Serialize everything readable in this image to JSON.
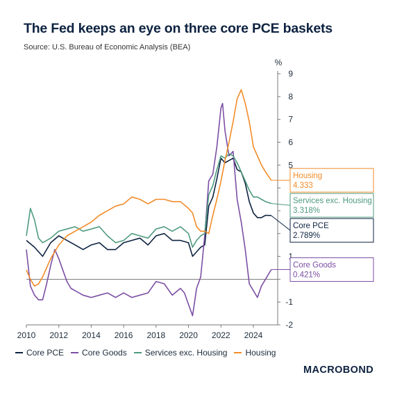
{
  "header": {
    "title": "The Fed keeps an eye on three core PCE baskets",
    "subtitle": "Source: U.S. Bureau of Economic Analysis (BEA)"
  },
  "brand": {
    "text": "MACROBOND"
  },
  "chart_data": {
    "type": "line",
    "title": "The Fed keeps an eye on three core PCE baskets",
    "subtitle": "Source: U.S. Bureau of Economic Analysis (BEA)",
    "unit_label": "%",
    "xlim": [
      2010,
      2025.5
    ],
    "ylim": [
      -2,
      9
    ],
    "x_ticks": [
      2010,
      2012,
      2014,
      2016,
      2018,
      2020,
      2022,
      2024
    ],
    "x_tick_labels": [
      "2010",
      "2012",
      "2014",
      "2016",
      "2018",
      "2020",
      "2022",
      "2024"
    ],
    "y_ticks": [
      -2,
      -1,
      0,
      1,
      2,
      3,
      4,
      5,
      6,
      7,
      8,
      9
    ],
    "y_tick_labels": [
      "-2",
      "-1",
      "",
      "1",
      "",
      "",
      "",
      "5",
      "6",
      "7",
      "8",
      "9"
    ],
    "zero_line": 0,
    "grid": false,
    "legend_position": "bottom",
    "series": [
      {
        "name": "Core PCE",
        "color": "#0d2240",
        "end_label": "Core PCE",
        "end_value_label": "2.789%",
        "x": [
          2010,
          2010.5,
          2011,
          2011.5,
          2012,
          2012.5,
          2013,
          2013.5,
          2014,
          2014.5,
          2015,
          2015.5,
          2016,
          2016.5,
          2017,
          2017.5,
          2018,
          2018.5,
          2019,
          2019.5,
          2020,
          2020.25,
          2020.5,
          2020.75,
          2021,
          2021.25,
          2021.5,
          2021.75,
          2022,
          2022.25,
          2022.5,
          2022.75,
          2023,
          2023.25,
          2023.5,
          2023.75,
          2024,
          2024.25,
          2024.5,
          2024.75,
          2025.1
        ],
        "y": [
          1.7,
          1.4,
          1.0,
          1.6,
          1.9,
          1.7,
          1.5,
          1.3,
          1.5,
          1.6,
          1.3,
          1.3,
          1.6,
          1.7,
          1.8,
          1.5,
          1.9,
          2.0,
          1.7,
          1.7,
          1.6,
          1.0,
          1.2,
          1.4,
          1.5,
          3.2,
          3.6,
          4.4,
          5.3,
          5.1,
          5.2,
          5.3,
          4.8,
          4.7,
          4.2,
          3.4,
          2.9,
          2.7,
          2.7,
          2.8,
          2.789
        ]
      },
      {
        "name": "Core Goods",
        "color": "#7b4ea3",
        "end_label": "Core Goods",
        "end_value_label": "0.421%",
        "x": [
          2010,
          2010.25,
          2010.5,
          2010.75,
          2011,
          2011.25,
          2011.5,
          2011.75,
          2012,
          2012.25,
          2012.5,
          2012.75,
          2013,
          2013.5,
          2014,
          2014.5,
          2015,
          2015.5,
          2016,
          2016.5,
          2017,
          2017.5,
          2018,
          2018.5,
          2019,
          2019.5,
          2019.75,
          2020,
          2020.25,
          2020.5,
          2020.75,
          2021,
          2021.25,
          2021.5,
          2021.75,
          2022,
          2022.1,
          2022.25,
          2022.5,
          2022.75,
          2023,
          2023.25,
          2023.5,
          2023.75,
          2024,
          2024.25,
          2024.5,
          2024.75,
          2025.1
        ],
        "y": [
          1.3,
          -0.3,
          -0.7,
          -0.9,
          -0.9,
          -0.2,
          0.6,
          1.3,
          0.9,
          0.4,
          -0.1,
          -0.4,
          -0.5,
          -0.7,
          -0.8,
          -0.7,
          -0.6,
          -0.8,
          -0.6,
          -0.8,
          -0.7,
          -0.6,
          -0.1,
          -0.2,
          -0.7,
          -0.4,
          -0.6,
          -1.1,
          -1.6,
          -0.4,
          0.1,
          1.9,
          4.3,
          4.6,
          5.8,
          7.5,
          7.7,
          6.5,
          5.4,
          5.6,
          3.5,
          2.5,
          1.3,
          -0.2,
          -0.5,
          -0.8,
          -0.3,
          0.0,
          0.421
        ]
      },
      {
        "name": "Services exc. Housing",
        "color": "#4e9a7e",
        "end_label": "Services exc. Housing",
        "end_value_label": "3.318%",
        "x": [
          2010,
          2010.25,
          2010.5,
          2010.75,
          2011,
          2011.5,
          2012,
          2012.5,
          2013,
          2013.5,
          2014,
          2014.5,
          2015,
          2015.5,
          2016,
          2016.5,
          2017,
          2017.5,
          2018,
          2018.5,
          2019,
          2019.5,
          2020,
          2020.25,
          2020.5,
          2020.75,
          2021,
          2021.25,
          2021.5,
          2021.75,
          2022,
          2022.25,
          2022.5,
          2022.75,
          2023,
          2023.25,
          2023.5,
          2023.75,
          2024,
          2024.25,
          2024.5,
          2024.75,
          2025.1
        ],
        "y": [
          1.9,
          3.1,
          2.6,
          1.8,
          1.6,
          1.8,
          2.1,
          2.2,
          2.3,
          2.1,
          2.2,
          2.3,
          1.9,
          1.6,
          1.7,
          2.0,
          1.9,
          1.8,
          2.2,
          2.3,
          2.1,
          2.3,
          2.0,
          1.4,
          1.7,
          1.9,
          2.0,
          3.7,
          4.1,
          4.8,
          5.4,
          5.3,
          5.5,
          5.4,
          5.1,
          4.7,
          4.3,
          3.9,
          3.6,
          3.6,
          3.5,
          3.4,
          3.318
        ]
      },
      {
        "name": "Housing",
        "color": "#f28c28",
        "end_label": "Housing",
        "end_value_label": "4.333",
        "x": [
          2010,
          2010.25,
          2010.5,
          2010.75,
          2011,
          2011.5,
          2012,
          2012.5,
          2013,
          2013.5,
          2014,
          2014.5,
          2015,
          2015.5,
          2016,
          2016.5,
          2017,
          2017.5,
          2018,
          2018.5,
          2019,
          2019.5,
          2020,
          2020.25,
          2020.5,
          2020.75,
          2021,
          2021.25,
          2021.5,
          2021.75,
          2022,
          2022.25,
          2022.5,
          2022.75,
          2023,
          2023.25,
          2023.5,
          2023.75,
          2024,
          2024.25,
          2024.5,
          2024.75,
          2025.1
        ],
        "y": [
          0.4,
          0.0,
          -0.3,
          -0.2,
          0.1,
          0.9,
          1.5,
          1.9,
          2.1,
          2.3,
          2.5,
          2.8,
          3.0,
          3.2,
          3.3,
          3.6,
          3.5,
          3.3,
          3.5,
          3.5,
          3.4,
          3.4,
          3.1,
          2.9,
          2.3,
          2.1,
          2.1,
          2.0,
          2.8,
          3.5,
          4.3,
          5.2,
          6.0,
          6.9,
          7.9,
          8.3,
          7.7,
          6.9,
          5.8,
          5.4,
          5.0,
          4.7,
          4.333
        ]
      }
    ]
  }
}
